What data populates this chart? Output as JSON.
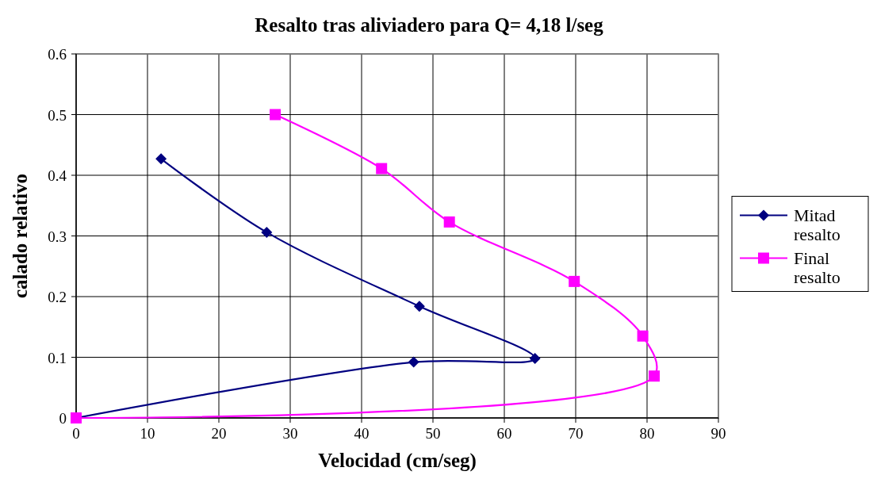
{
  "chart_data": {
    "type": "line",
    "title": "Resalto tras aliviadero para Q= 4,18 l/seg",
    "xlabel": "Velocidad (cm/seg)",
    "ylabel": "calado relativo",
    "xlim": [
      0,
      90
    ],
    "xticks": [
      0,
      10,
      20,
      30,
      40,
      50,
      60,
      70,
      80,
      90
    ],
    "ylim": [
      0,
      0.6
    ],
    "yticks": [
      0,
      0.1,
      0.2,
      0.3,
      0.4,
      0.5,
      0.6
    ],
    "grid": true,
    "legend": "right",
    "series": [
      {
        "name": "Mitad resalto",
        "color": "#000080",
        "marker": "diamond",
        "x": [
          0,
          47.3,
          64.3,
          48.1,
          26.7,
          11.9
        ],
        "values": [
          0,
          0.092,
          0.098,
          0.184,
          0.306,
          0.427
        ]
      },
      {
        "name": "Final resalto",
        "color": "#ff00ff",
        "marker": "square",
        "x": [
          0,
          81.0,
          79.4,
          69.8,
          52.3,
          42.8,
          27.9
        ],
        "values": [
          0,
          0.069,
          0.135,
          0.225,
          0.323,
          0.411,
          0.5
        ]
      }
    ]
  }
}
